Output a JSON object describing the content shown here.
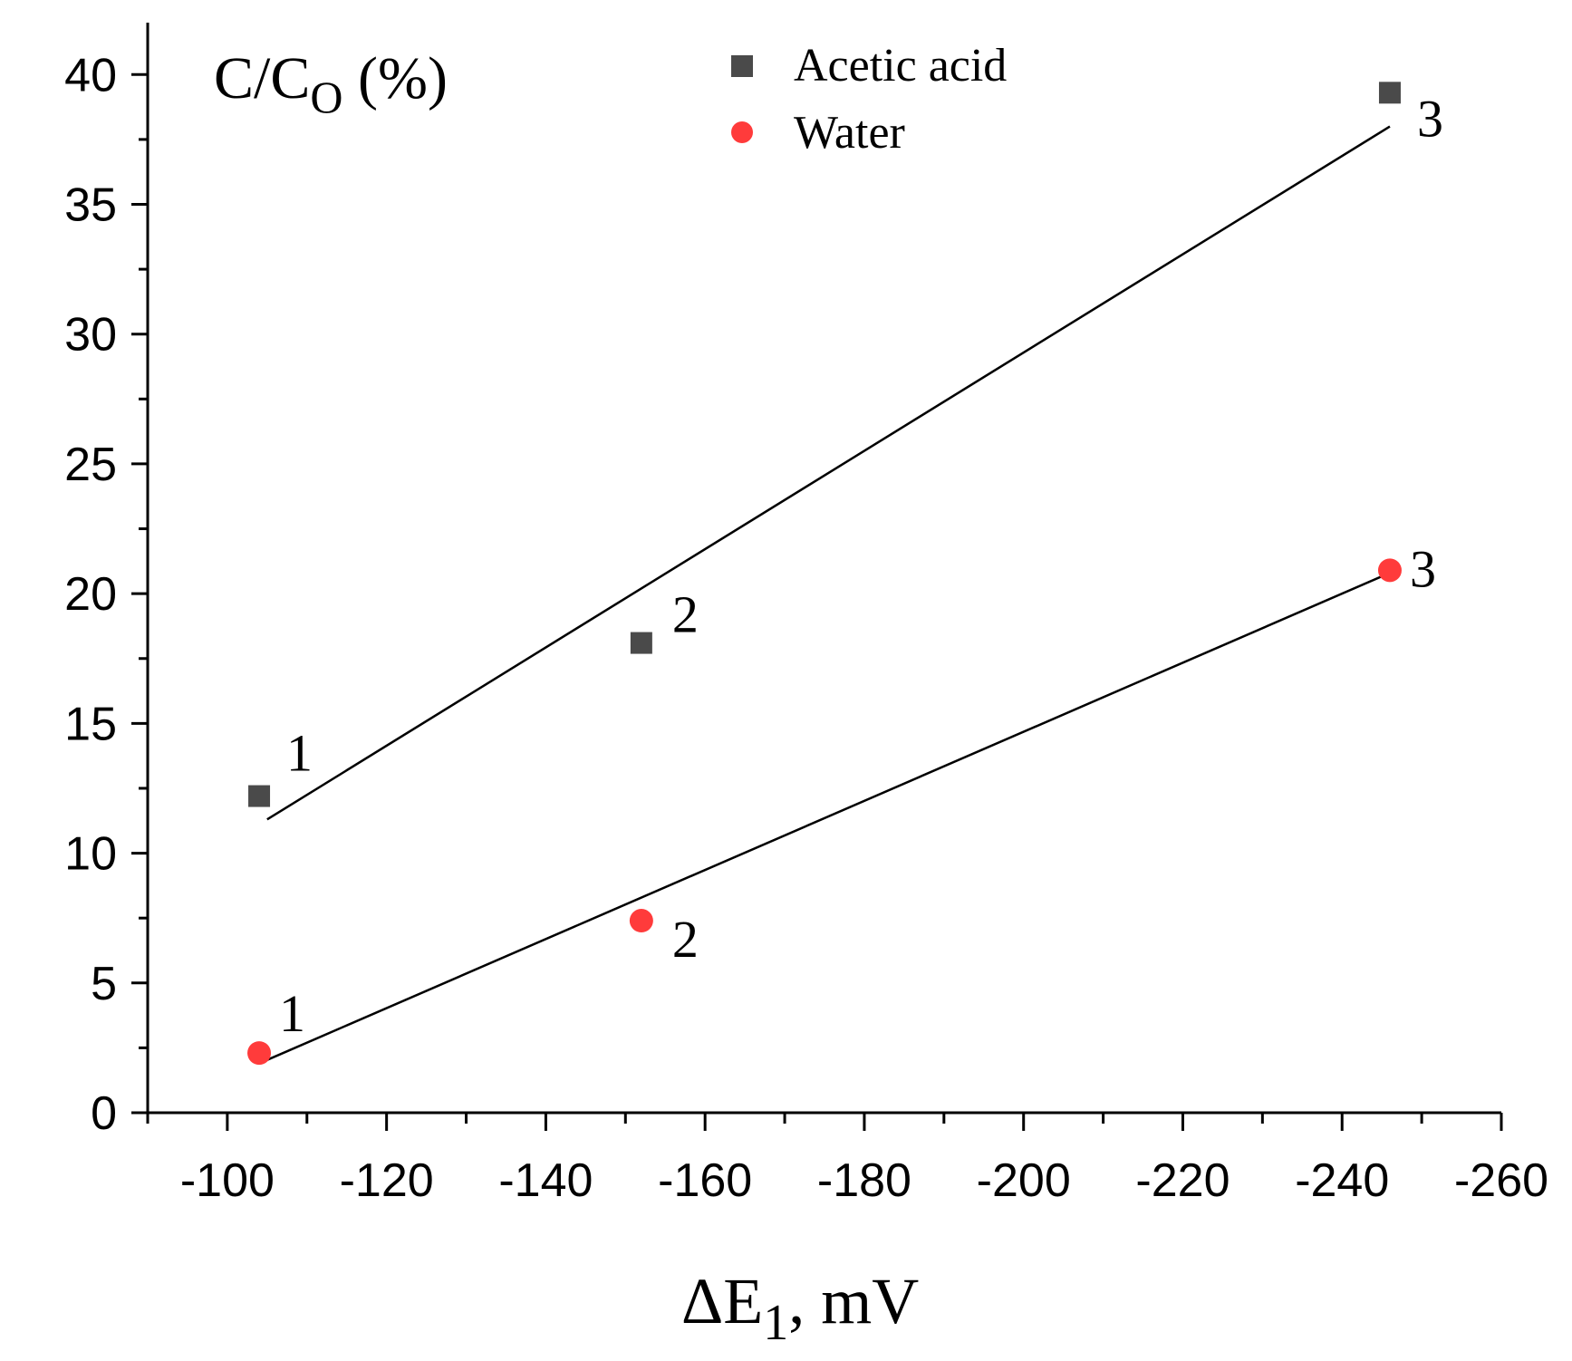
{
  "chart_data": {
    "type": "scatter",
    "ylabel": {
      "main": "C/C",
      "sub": "O",
      "suffix": " (%)"
    },
    "xlabel": {
      "main": "ΔE",
      "sub": "1",
      "suffix": ", mV"
    },
    "xlim": [
      -90,
      -260
    ],
    "ylim": [
      0,
      42
    ],
    "x_ticks": [
      -100,
      -120,
      -140,
      -160,
      -180,
      -200,
      -220,
      -240,
      -260
    ],
    "x_tick_labels": [
      "-100",
      "-120",
      "-140",
      "-160",
      "-180",
      "-200",
      "-220",
      "-240",
      "-260"
    ],
    "y_ticks": [
      0,
      5,
      10,
      15,
      20,
      25,
      30,
      35,
      40
    ],
    "y_tick_labels": [
      "0",
      "5",
      "10",
      "15",
      "20",
      "25",
      "30",
      "35",
      "40"
    ],
    "legend_position": "top-center",
    "series": [
      {
        "name": "Acetic acid",
        "marker": "square",
        "color": "#4a4a4a",
        "x": [
          -104,
          -152,
          -246
        ],
        "y": [
          12.2,
          18.1,
          39.3
        ],
        "point_labels": [
          "1",
          "2",
          "3"
        ],
        "fit": {
          "x": [
            -105,
            -246
          ],
          "y": [
            11.3,
            38.0
          ]
        }
      },
      {
        "name": "Water",
        "marker": "circle",
        "color": "#ff3b3b",
        "x": [
          -104,
          -152,
          -246
        ],
        "y": [
          2.3,
          7.4,
          20.9
        ],
        "point_labels": [
          "1",
          "2",
          "3"
        ],
        "fit": {
          "x": [
            -104,
            -246
          ],
          "y": [
            1.9,
            20.8
          ]
        }
      }
    ]
  }
}
